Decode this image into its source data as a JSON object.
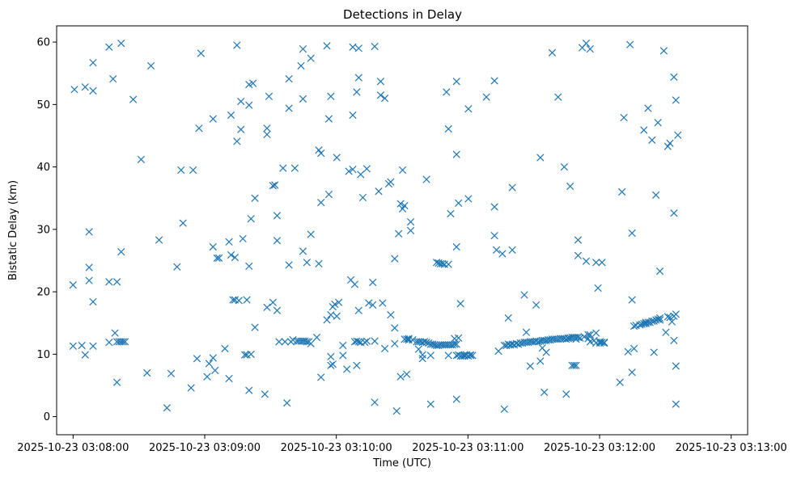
{
  "chart_data": {
    "type": "scatter",
    "title": "Detections in Delay",
    "xlabel": "Time (UTC)",
    "ylabel": "Bistatic Delay (km)",
    "marker": "x",
    "color": "#1f77b4",
    "grid": false,
    "x_unit": "seconds after 2025-10-23 03:08:00 UTC",
    "xlim": [
      -7.5,
      307.5
    ],
    "ylim": [
      -2.9,
      62.6
    ],
    "xticks": [
      {
        "value": 0,
        "label": "2025-10-23 03:08:00"
      },
      {
        "value": 60,
        "label": "2025-10-23 03:09:00"
      },
      {
        "value": 120,
        "label": "2025-10-23 03:10:00"
      },
      {
        "value": 180,
        "label": "2025-10-23 03:11:00"
      },
      {
        "value": 240,
        "label": "2025-10-23 03:12:00"
      },
      {
        "value": 300,
        "label": "2025-10-23 03:13:00"
      }
    ],
    "yticks": [
      {
        "value": 0,
        "label": "0"
      },
      {
        "value": 10,
        "label": "10"
      },
      {
        "value": 20,
        "label": "20"
      },
      {
        "value": 30,
        "label": "30"
      },
      {
        "value": 40,
        "label": "40"
      },
      {
        "value": 50,
        "label": "50"
      },
      {
        "value": 60,
        "label": "60"
      }
    ],
    "points": [
      [
        0.0,
        21.1
      ],
      [
        0.6,
        52.4
      ],
      [
        0.0,
        11.3
      ],
      [
        4.0,
        11.4
      ],
      [
        5.5,
        52.8
      ],
      [
        5.5,
        9.9
      ],
      [
        7.3,
        29.6
      ],
      [
        7.3,
        23.9
      ],
      [
        7.3,
        21.8
      ],
      [
        9.1,
        56.7
      ],
      [
        9.1,
        52.2
      ],
      [
        9.1,
        18.4
      ],
      [
        9.1,
        11.3
      ],
      [
        16.4,
        59.2
      ],
      [
        16.4,
        21.6
      ],
      [
        16.4,
        11.9
      ],
      [
        18.2,
        54.1
      ],
      [
        19.1,
        13.4
      ],
      [
        20.0,
        21.6
      ],
      [
        20.0,
        12.0
      ],
      [
        20.0,
        5.5
      ],
      [
        21.0,
        12.0
      ],
      [
        21.9,
        26.4
      ],
      [
        21.9,
        12.0
      ],
      [
        22.8,
        12.0
      ],
      [
        21.9,
        59.8
      ],
      [
        23.7,
        12.0
      ],
      [
        27.4,
        50.8
      ],
      [
        31.0,
        41.2
      ],
      [
        33.7,
        7.0
      ],
      [
        35.5,
        56.2
      ],
      [
        39.2,
        28.3
      ],
      [
        42.8,
        1.4
      ],
      [
        44.7,
        6.9
      ],
      [
        47.4,
        24.0
      ],
      [
        49.2,
        39.5
      ],
      [
        50.1,
        31.0
      ],
      [
        53.8,
        4.6
      ],
      [
        54.7,
        39.5
      ],
      [
        56.5,
        9.3
      ],
      [
        57.4,
        46.2
      ],
      [
        58.3,
        58.2
      ],
      [
        61.1,
        6.4
      ],
      [
        62.0,
        8.5
      ],
      [
        63.8,
        47.7
      ],
      [
        63.8,
        27.2
      ],
      [
        63.8,
        9.4
      ],
      [
        64.7,
        7.4
      ],
      [
        65.6,
        25.4
      ],
      [
        66.5,
        25.4
      ],
      [
        69.2,
        10.9
      ],
      [
        71.1,
        6.1
      ],
      [
        71.1,
        28.0
      ],
      [
        72.0,
        25.9
      ],
      [
        72.0,
        48.3
      ],
      [
        72.9,
        18.7
      ],
      [
        73.8,
        25.5
      ],
      [
        73.8,
        18.7
      ],
      [
        74.7,
        44.1
      ],
      [
        74.7,
        59.5
      ],
      [
        75.6,
        18.6
      ],
      [
        76.5,
        46.0
      ],
      [
        76.5,
        50.5
      ],
      [
        77.4,
        28.5
      ],
      [
        78.3,
        9.9
      ],
      [
        79.2,
        9.9
      ],
      [
        79.2,
        18.7
      ],
      [
        80.2,
        49.9
      ],
      [
        80.2,
        53.2
      ],
      [
        80.2,
        24.1
      ],
      [
        80.2,
        4.2
      ],
      [
        81.1,
        10.0
      ],
      [
        81.1,
        31.7
      ],
      [
        82.0,
        53.4
      ],
      [
        82.9,
        14.3
      ],
      [
        82.9,
        35.0
      ],
      [
        87.4,
        3.6
      ],
      [
        88.4,
        17.5
      ],
      [
        88.4,
        46.2
      ],
      [
        88.4,
        45.2
      ],
      [
        89.3,
        51.3
      ],
      [
        91.1,
        37.0
      ],
      [
        91.1,
        18.3
      ],
      [
        92.0,
        37.1
      ],
      [
        93.0,
        28.2
      ],
      [
        93.0,
        32.2
      ],
      [
        93.0,
        17.0
      ],
      [
        93.9,
        12.0
      ],
      [
        95.7,
        39.8
      ],
      [
        96.6,
        12.0
      ],
      [
        97.5,
        2.2
      ],
      [
        98.4,
        54.1
      ],
      [
        98.4,
        49.4
      ],
      [
        98.4,
        24.3
      ],
      [
        99.3,
        12.0
      ],
      [
        100.2,
        12.3
      ],
      [
        101.1,
        39.8
      ],
      [
        102.0,
        12.1
      ],
      [
        102.9,
        12.1
      ],
      [
        103.9,
        56.2
      ],
      [
        103.9,
        12.1
      ],
      [
        104.8,
        12.1
      ],
      [
        104.8,
        58.9
      ],
      [
        104.8,
        50.9
      ],
      [
        104.8,
        26.5
      ],
      [
        105.7,
        12.1
      ],
      [
        106.6,
        24.7
      ],
      [
        106.6,
        12.0
      ],
      [
        107.5,
        12.0
      ],
      [
        108.4,
        57.4
      ],
      [
        108.4,
        29.2
      ],
      [
        108.4,
        11.7
      ],
      [
        111.1,
        12.7
      ],
      [
        112.0,
        42.7
      ],
      [
        112.0,
        24.5
      ],
      [
        113.0,
        42.2
      ],
      [
        113.0,
        34.3
      ],
      [
        113.0,
        6.3
      ],
      [
        115.7,
        59.4
      ],
      [
        115.7,
        15.5
      ],
      [
        116.6,
        47.7
      ],
      [
        116.6,
        35.6
      ],
      [
        117.5,
        51.3
      ],
      [
        117.5,
        16.3
      ],
      [
        117.5,
        9.6
      ],
      [
        117.5,
        8.2
      ],
      [
        118.4,
        17.6
      ],
      [
        118.4,
        8.4
      ],
      [
        119.3,
        18.0
      ],
      [
        120.2,
        41.5
      ],
      [
        120.2,
        16.1
      ],
      [
        121.1,
        18.3
      ],
      [
        123.0,
        9.8
      ],
      [
        123.0,
        11.4
      ],
      [
        124.8,
        7.6
      ],
      [
        125.7,
        39.3
      ],
      [
        126.6,
        21.9
      ],
      [
        127.5,
        59.2
      ],
      [
        127.5,
        39.6
      ],
      [
        127.5,
        48.3
      ],
      [
        128.4,
        12.0
      ],
      [
        128.4,
        21.2
      ],
      [
        129.3,
        52.0
      ],
      [
        129.3,
        12.1
      ],
      [
        129.3,
        8.2
      ],
      [
        130.2,
        54.3
      ],
      [
        130.2,
        59.0
      ],
      [
        130.2,
        17.0
      ],
      [
        130.2,
        12.0
      ],
      [
        131.1,
        38.8
      ],
      [
        131.1,
        11.9
      ],
      [
        132.1,
        35.1
      ],
      [
        133.0,
        11.9
      ],
      [
        133.9,
        12.1
      ],
      [
        133.9,
        39.7
      ],
      [
        134.8,
        18.2
      ],
      [
        136.6,
        21.5
      ],
      [
        136.6,
        17.9
      ],
      [
        137.5,
        59.3
      ],
      [
        137.5,
        12.1
      ],
      [
        137.5,
        2.3
      ],
      [
        139.3,
        36.1
      ],
      [
        140.2,
        51.5
      ],
      [
        140.2,
        53.7
      ],
      [
        141.1,
        18.2
      ],
      [
        142.1,
        51.0
      ],
      [
        142.1,
        10.9
      ],
      [
        143.9,
        37.3
      ],
      [
        144.8,
        37.6
      ],
      [
        144.8,
        16.3
      ],
      [
        146.6,
        25.3
      ],
      [
        146.6,
        14.2
      ],
      [
        146.6,
        11.7
      ],
      [
        147.5,
        0.9
      ],
      [
        148.4,
        29.3
      ],
      [
        149.3,
        34.1
      ],
      [
        149.3,
        6.4
      ],
      [
        150.2,
        39.5
      ],
      [
        150.2,
        33.3
      ],
      [
        151.1,
        33.8
      ],
      [
        151.1,
        12.4
      ],
      [
        152.1,
        12.4
      ],
      [
        152.1,
        6.8
      ],
      [
        153.0,
        12.3
      ],
      [
        153.9,
        31.2
      ],
      [
        153.9,
        29.8
      ],
      [
        153.0,
        12.5
      ],
      [
        154.8,
        12.3
      ],
      [
        156.6,
        12.0
      ],
      [
        157.5,
        12.0
      ],
      [
        157.5,
        10.8
      ],
      [
        158.4,
        12.0
      ],
      [
        159.3,
        9.3
      ],
      [
        159.3,
        11.9
      ],
      [
        159.3,
        9.9
      ],
      [
        160.2,
        12.0
      ],
      [
        161.1,
        38.0
      ],
      [
        161.1,
        11.9
      ],
      [
        162.1,
        11.8
      ],
      [
        163.0,
        11.6
      ],
      [
        163.0,
        9.8
      ],
      [
        163.0,
        2.0
      ],
      [
        163.9,
        11.6
      ],
      [
        164.8,
        11.5
      ],
      [
        165.7,
        11.4
      ],
      [
        165.7,
        24.7
      ],
      [
        166.6,
        24.6
      ],
      [
        166.6,
        11.4
      ],
      [
        167.5,
        11.5
      ],
      [
        167.5,
        24.5
      ],
      [
        168.4,
        24.5
      ],
      [
        168.4,
        11.5
      ],
      [
        169.3,
        24.4
      ],
      [
        169.3,
        11.5
      ],
      [
        170.2,
        52.0
      ],
      [
        170.2,
        11.5
      ],
      [
        171.1,
        46.1
      ],
      [
        171.1,
        24.4
      ],
      [
        171.1,
        11.5
      ],
      [
        171.1,
        9.8
      ],
      [
        172.1,
        11.5
      ],
      [
        172.1,
        32.5
      ],
      [
        173.0,
        11.5
      ],
      [
        173.9,
        11.6
      ],
      [
        173.9,
        12.5
      ],
      [
        174.8,
        11.6
      ],
      [
        174.8,
        53.7
      ],
      [
        174.8,
        42.0
      ],
      [
        174.8,
        27.2
      ],
      [
        174.8,
        9.8
      ],
      [
        174.8,
        2.8
      ],
      [
        175.7,
        34.2
      ],
      [
        175.7,
        12.6
      ],
      [
        175.7,
        9.9
      ],
      [
        176.6,
        18.1
      ],
      [
        176.6,
        9.7
      ],
      [
        177.5,
        9.7
      ],
      [
        178.4,
        9.7
      ],
      [
        178.4,
        9.9
      ],
      [
        179.3,
        9.9
      ],
      [
        180.2,
        49.3
      ],
      [
        180.2,
        34.9
      ],
      [
        180.2,
        9.7
      ],
      [
        181.1,
        9.8
      ],
      [
        181.1,
        9.9
      ],
      [
        182.1,
        9.8
      ],
      [
        188.4,
        51.2
      ],
      [
        192.1,
        53.8
      ],
      [
        192.1,
        33.6
      ],
      [
        192.1,
        29.0
      ],
      [
        193.0,
        26.7
      ],
      [
        193.9,
        10.5
      ],
      [
        195.7,
        26.1
      ],
      [
        196.6,
        11.4
      ],
      [
        196.6,
        1.2
      ],
      [
        197.5,
        11.4
      ],
      [
        198.4,
        15.8
      ],
      [
        198.4,
        11.6
      ],
      [
        199.3,
        11.5
      ],
      [
        200.2,
        11.6
      ],
      [
        200.2,
        26.7
      ],
      [
        200.2,
        36.7
      ],
      [
        201.1,
        11.5
      ],
      [
        202.1,
        11.7
      ],
      [
        203.0,
        11.6
      ],
      [
        203.9,
        11.8
      ],
      [
        204.8,
        11.8
      ],
      [
        205.7,
        11.9
      ],
      [
        205.7,
        19.5
      ],
      [
        206.6,
        11.9
      ],
      [
        206.6,
        13.5
      ],
      [
        207.5,
        11.9
      ],
      [
        208.4,
        12.0
      ],
      [
        208.4,
        8.1
      ],
      [
        209.3,
        12.0
      ],
      [
        210.2,
        12.0
      ],
      [
        211.1,
        12.1
      ],
      [
        211.1,
        17.9
      ],
      [
        212.1,
        12.0
      ],
      [
        213.0,
        12.1
      ],
      [
        213.0,
        8.9
      ],
      [
        213.0,
        41.5
      ],
      [
        213.9,
        12.2
      ],
      [
        213.9,
        11.0
      ],
      [
        214.8,
        12.2
      ],
      [
        214.8,
        3.9
      ],
      [
        215.7,
        12.2
      ],
      [
        215.7,
        10.3
      ],
      [
        216.6,
        12.3
      ],
      [
        217.5,
        12.3
      ],
      [
        218.4,
        12.4
      ],
      [
        218.4,
        58.3
      ],
      [
        219.3,
        12.4
      ],
      [
        220.2,
        12.4
      ],
      [
        221.1,
        12.4
      ],
      [
        221.1,
        51.2
      ],
      [
        222.1,
        12.5
      ],
      [
        223.0,
        12.5
      ],
      [
        223.9,
        40.0
      ],
      [
        223.9,
        12.5
      ],
      [
        224.8,
        12.4
      ],
      [
        224.8,
        3.6
      ],
      [
        225.7,
        12.6
      ],
      [
        225.7,
        12.5
      ],
      [
        226.6,
        12.6
      ],
      [
        226.6,
        36.9
      ],
      [
        227.5,
        12.7
      ],
      [
        227.5,
        8.2
      ],
      [
        228.4,
        12.7
      ],
      [
        228.4,
        8.2
      ],
      [
        229.3,
        12.7
      ],
      [
        229.3,
        12.4
      ],
      [
        229.3,
        8.2
      ],
      [
        230.2,
        12.7
      ],
      [
        230.2,
        28.3
      ],
      [
        230.2,
        25.8
      ],
      [
        231.1,
        12.6
      ],
      [
        232.1,
        59.1
      ],
      [
        233.0,
        12.8
      ],
      [
        233.9,
        59.8
      ],
      [
        233.9,
        24.9
      ],
      [
        234.8,
        13.1
      ],
      [
        234.8,
        12.5
      ],
      [
        235.7,
        13.1
      ],
      [
        235.7,
        12.0
      ],
      [
        235.7,
        58.9
      ],
      [
        237.5,
        12.2
      ],
      [
        238.4,
        13.4
      ],
      [
        238.4,
        24.7
      ],
      [
        238.4,
        11.8
      ],
      [
        239.3,
        20.6
      ],
      [
        240.2,
        12.0
      ],
      [
        240.2,
        11.8
      ],
      [
        241.1,
        11.9
      ],
      [
        241.1,
        24.7
      ],
      [
        242.1,
        11.9
      ],
      [
        242.1,
        11.8
      ],
      [
        249.3,
        5.5
      ],
      [
        250.2,
        36.0
      ],
      [
        251.1,
        47.9
      ],
      [
        253.0,
        10.4
      ],
      [
        253.9,
        59.6
      ],
      [
        254.8,
        18.7
      ],
      [
        254.8,
        29.4
      ],
      [
        254.8,
        7.1
      ],
      [
        255.7,
        14.5
      ],
      [
        255.7,
        10.9
      ],
      [
        256.6,
        14.6
      ],
      [
        258.4,
        14.7
      ],
      [
        259.3,
        14.8
      ],
      [
        260.2,
        14.9
      ],
      [
        260.2,
        45.9
      ],
      [
        261.1,
        14.9
      ],
      [
        261.1,
        15.1
      ],
      [
        262.1,
        49.4
      ],
      [
        262.1,
        15.1
      ],
      [
        263.0,
        15.1
      ],
      [
        263.9,
        15.3
      ],
      [
        263.9,
        44.3
      ],
      [
        264.8,
        15.3
      ],
      [
        264.8,
        10.3
      ],
      [
        265.7,
        15.5
      ],
      [
        265.7,
        35.5
      ],
      [
        266.6,
        47.1
      ],
      [
        266.6,
        15.6
      ],
      [
        267.5,
        23.3
      ],
      [
        267.5,
        15.5
      ],
      [
        267.5,
        15.8
      ],
      [
        269.3,
        58.6
      ],
      [
        270.2,
        13.5
      ],
      [
        271.1,
        16.0
      ],
      [
        271.1,
        43.3
      ],
      [
        272.1,
        43.8
      ],
      [
        272.1,
        15.9
      ],
      [
        273.0,
        15.2
      ],
      [
        273.9,
        12.2
      ],
      [
        273.9,
        16.1
      ],
      [
        273.9,
        32.6
      ],
      [
        273.9,
        54.4
      ],
      [
        274.8,
        16.4
      ],
      [
        274.8,
        2.0
      ],
      [
        274.8,
        8.1
      ],
      [
        274.8,
        50.7
      ],
      [
        275.7,
        45.1
      ]
    ]
  }
}
